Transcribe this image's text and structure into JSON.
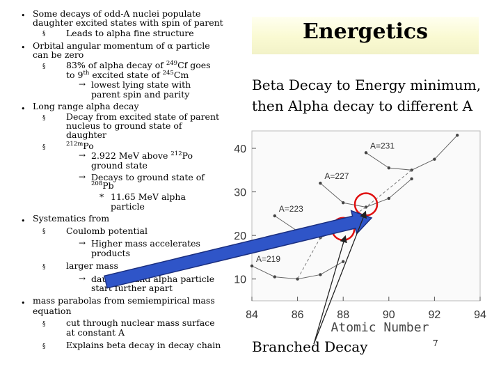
{
  "slide": {
    "title": "Energetics",
    "subtitle_line1": "Beta Decay to Energy minimum,",
    "subtitle_line2": "then Alpha decay to different A",
    "branched_label": "Branched Decay",
    "page_number": "7"
  },
  "text": {
    "l1": "Some decays of odd-A nuclei populate",
    "l2": "daughter excited states with spin of parent",
    "l3": "Leads to alpha fine structure",
    "l4": "Orbital angular momentum of α particle",
    "l5": "can be zero",
    "l6a": "83% of alpha decay of ",
    "l6sup": "249",
    "l6b": "Cf goes",
    "l7a": "to 9",
    "l7sup1": "th",
    "l7b": " excited state of ",
    "l7sup2": "245",
    "l7c": "Cm",
    "l8": "lowest lying state with",
    "l9": "parent spin and parity",
    "l10": "Long range alpha decay",
    "l11": "Decay from excited state of parent",
    "l12": "nucleus to ground state of",
    "l13": "daughter",
    "l14sup": "212m",
    "l14b": "Po",
    "l15a": "2.922 MeV above ",
    "l15sup": "212",
    "l15b": "Po",
    "l16": "ground state",
    "l17": "Decays to ground state of",
    "l18sup": "208",
    "l18b": "Pb",
    "l19": "11.65 MeV alpha",
    "l20": "particle",
    "l21": "Systematics from",
    "l22": "Coulomb potential",
    "l23": "Higher mass accelerates",
    "l24": "products",
    "l25": "larger mass",
    "l26": "daughter and alpha particle",
    "l27": "start further apart",
    "l28": "mass parabolas from semiempirical mass",
    "l29": "equation",
    "l30": "cut through nuclear mass surface",
    "l31": "at constant A",
    "l32": "Explains beta decay in decay chain"
  },
  "bullets": {
    "dot": "•",
    "square": "§",
    "arrow": "→",
    "star": "*"
  },
  "chart_data": {
    "type": "scatter",
    "x_ticks": [
      "84",
      "86",
      "88",
      "90",
      "92",
      "94"
    ],
    "y_ticks": [
      "10",
      "20",
      "30",
      "40"
    ],
    "xlabel": "Atomic Number",
    "ylabel": "",
    "xlim": [
      84,
      94
    ],
    "ylim": [
      5,
      44
    ],
    "series": [
      {
        "name": "A=231",
        "x": [
          89,
          90,
          91,
          92,
          93
        ],
        "y": [
          39,
          35.5,
          35,
          37.5,
          43
        ]
      },
      {
        "name": "A=227",
        "x": [
          87,
          88,
          89,
          90,
          91
        ],
        "y": [
          32,
          27.5,
          26.5,
          28.5,
          33
        ]
      },
      {
        "name": "A=223",
        "x": [
          85,
          86,
          87,
          88,
          89
        ],
        "y": [
          24.5,
          21,
          19.5,
          21.5,
          24.5
        ]
      },
      {
        "name": "A=219",
        "x": [
          84,
          85,
          86,
          87,
          88
        ],
        "y": [
          13,
          10.5,
          10,
          11,
          14
        ]
      }
    ],
    "highlight_colors": {
      "circle": "#e01010",
      "arrow": "#2f55c8",
      "marker": "#222222"
    }
  }
}
